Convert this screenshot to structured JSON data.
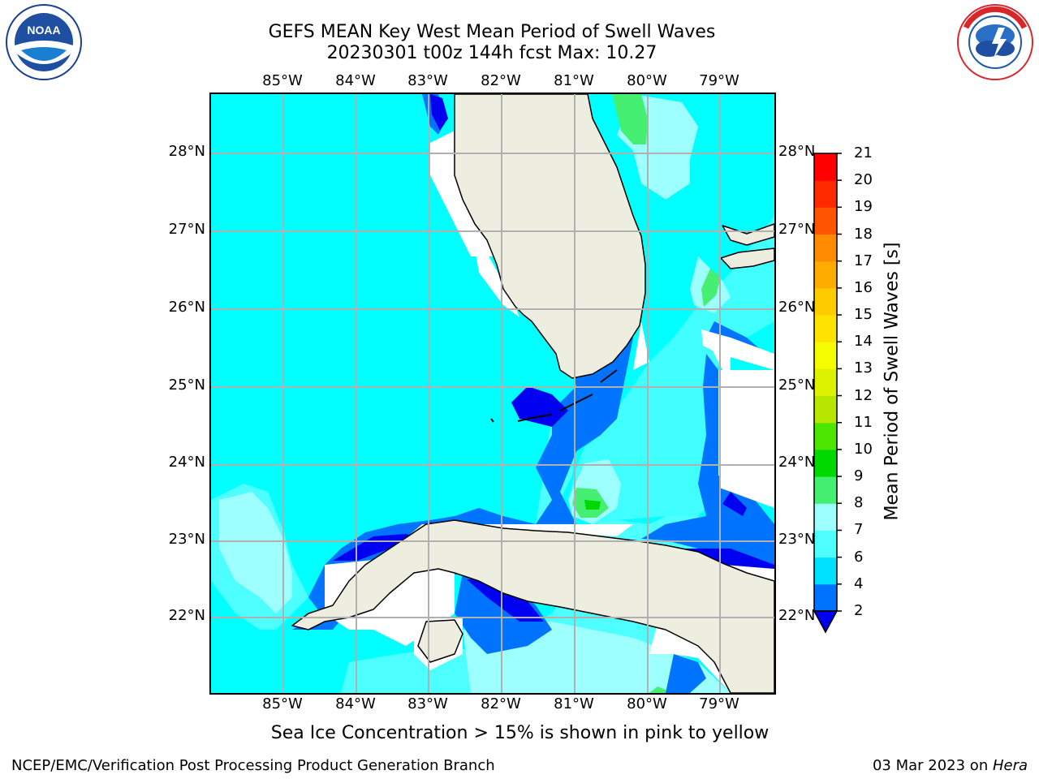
{
  "header": {
    "title_line1": "GEFS MEAN Key West Mean Period of Swell Waves",
    "title_line2": "20230301 t00z 144h fcst   Max: 10.27"
  },
  "logos": {
    "left": "noaa-logo",
    "right": "nws-logo",
    "left_text": "NOAA",
    "left_ring_text": "NATIONAL OCEANIC AND ATMOSPHERIC ADMINISTRATION · U.S. DEPARTMENT OF COMMERCE",
    "right_ring_text": "NATIONAL WEATHER SERVICE"
  },
  "map": {
    "longitude_labels": [
      "85°W",
      "84°W",
      "83°W",
      "82°W",
      "81°W",
      "80°W",
      "79°W"
    ],
    "latitude_labels": [
      "28°N",
      "27°N",
      "26°N",
      "25°N",
      "24°N",
      "23°N",
      "22°N"
    ],
    "land_color": "#eeeee0",
    "grid_color": "#b0b0b0",
    "coastline_color": "#000000"
  },
  "colorbar": {
    "title": "Mean Period of Swell Waves [s]",
    "ticks": [
      "2",
      "4",
      "6",
      "7",
      "8",
      "9",
      "10",
      "11",
      "12",
      "13",
      "14",
      "15",
      "16",
      "17",
      "18",
      "19",
      "20",
      "21"
    ],
    "colors": [
      "#0073ff",
      "#00e1ff",
      "#4dffff",
      "#9effff",
      "#45ef72",
      "#00d900",
      "#4ce600",
      "#b7e600",
      "#dcf200",
      "#f5fb00",
      "#ffe300",
      "#ffcc00",
      "#ffab00",
      "#ff8c00",
      "#ff5500",
      "#ff2b00",
      "#ff0000"
    ],
    "under_color": "#0000f0"
  },
  "note": "Sea Ice Concentration > 15% is shown in pink to yellow",
  "footer": {
    "left": "NCEP/EMC/Verification Post Processing Product Generation Branch",
    "date": "03 Mar 2023 on ",
    "machine": "Hera"
  }
}
